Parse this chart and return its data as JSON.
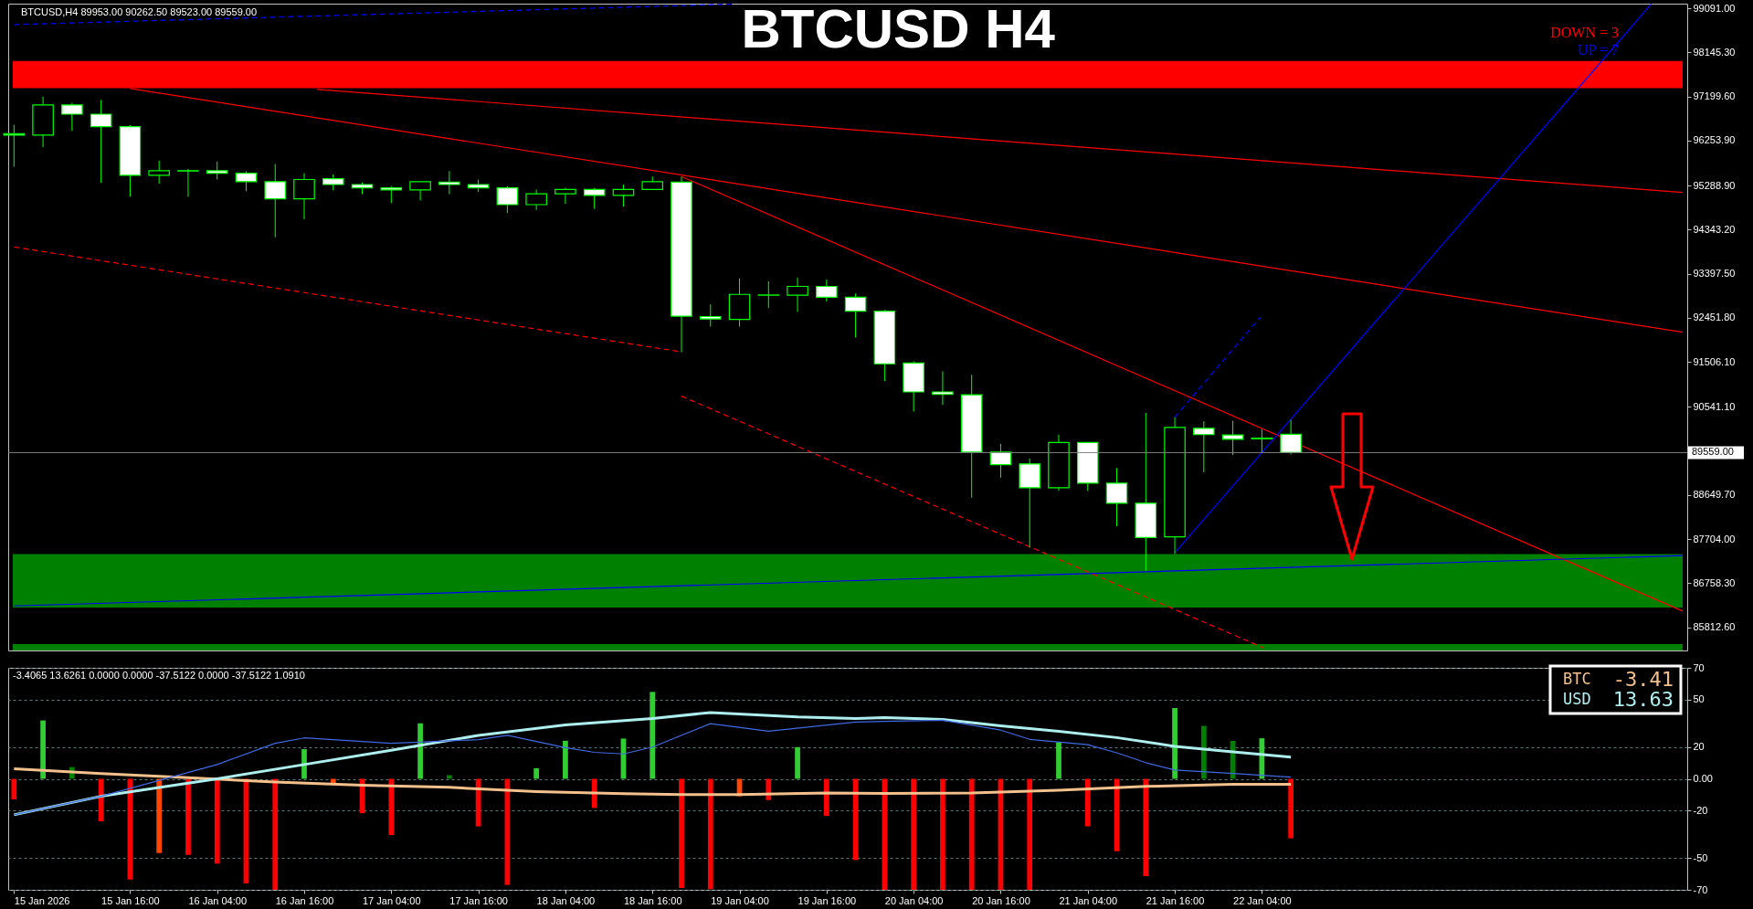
{
  "chart_data": [
    {
      "type": "candlestick",
      "title": "BTCUSD H4",
      "annotations": [
        "BTCUSD,H4  89953.00 90262.50 89523.00 89559.00",
        "DOWN = 3",
        "UP = 7"
      ],
      "x": [
        "2026-01-15T00:00",
        "2026-01-15T04:00",
        "2026-01-15T08:00",
        "2026-01-15T12:00",
        "2026-01-15T16:00",
        "2026-01-15T20:00",
        "2026-01-16T00:00",
        "2026-01-16T04:00",
        "2026-01-16T08:00",
        "2026-01-16T12:00",
        "2026-01-16T16:00",
        "2026-01-16T20:00",
        "2026-01-17T00:00",
        "2026-01-17T04:00",
        "2026-01-17T08:00",
        "2026-01-17T12:00",
        "2026-01-17T16:00",
        "2026-01-17T20:00",
        "2026-01-18T00:00",
        "2026-01-18T04:00",
        "2026-01-18T08:00",
        "2026-01-18T12:00",
        "2026-01-18T16:00",
        "2026-01-18T20:00",
        "2026-01-19T00:00",
        "2026-01-19T04:00",
        "2026-01-19T08:00",
        "2026-01-19T12:00",
        "2026-01-19T16:00",
        "2026-01-19T20:00",
        "2026-01-20T00:00",
        "2026-01-20T04:00",
        "2026-01-20T08:00",
        "2026-01-20T12:00",
        "2026-01-20T16:00",
        "2026-01-20T20:00",
        "2026-01-21T00:00",
        "2026-01-21T04:00",
        "2026-01-21T08:00",
        "2026-01-21T12:00",
        "2026-01-21T16:00",
        "2026-01-21T20:00",
        "2026-01-22T00:00",
        "2026-01-22T04:00",
        "2026-01-22T08:00"
      ],
      "ohlc": [
        [
          96400,
          96590,
          95690,
          96370
        ],
        [
          96369,
          97195,
          96109,
          97016
        ],
        [
          97016,
          97060,
          96459,
          96818
        ],
        [
          96818,
          97123,
          95345,
          96549
        ],
        [
          96549,
          96585,
          95049,
          95507
        ],
        [
          95507,
          95821,
          95327,
          95606
        ],
        [
          95606,
          95642,
          95049,
          95600
        ],
        [
          95606,
          95803,
          95417,
          95552
        ],
        [
          95552,
          95597,
          95166,
          95372
        ],
        [
          95372,
          95749,
          94178,
          95004
        ],
        [
          95004,
          95552,
          94564,
          95417
        ],
        [
          95435,
          95525,
          95184,
          95309
        ],
        [
          95309,
          95354,
          95103,
          95237
        ],
        [
          95237,
          95273,
          94914,
          95193
        ],
        [
          95193,
          95372,
          94968,
          95372
        ],
        [
          95363,
          95597,
          95103,
          95309
        ],
        [
          95309,
          95417,
          95148,
          95237
        ],
        [
          95237,
          95273,
          94699,
          94878
        ],
        [
          94878,
          95202,
          94762,
          95112
        ],
        [
          95112,
          95237,
          94896,
          95202
        ],
        [
          95202,
          95237,
          94789,
          95076
        ],
        [
          95076,
          95309,
          94834,
          95202
        ],
        [
          95202,
          95480,
          95202,
          95372
        ],
        [
          95360,
          95477,
          91714,
          92486
        ],
        [
          92477,
          92738,
          92262,
          92424
        ],
        [
          92415,
          93295,
          92262,
          92953
        ],
        [
          92935,
          93232,
          92666,
          92940
        ],
        [
          92935,
          93313,
          92576,
          93124
        ],
        [
          93124,
          93268,
          92800,
          92890
        ],
        [
          92890,
          92971,
          92028,
          92594
        ],
        [
          92594,
          92621,
          91095,
          91463
        ],
        [
          91481,
          91517,
          90439,
          90861
        ],
        [
          90861,
          91301,
          90583,
          90807
        ],
        [
          90798,
          91229,
          88591,
          89568
        ],
        [
          89568,
          89748,
          89020,
          89299
        ],
        [
          89317,
          89433,
          87520,
          88805
        ],
        [
          88805,
          89945,
          88742,
          89775
        ],
        [
          89775,
          89775,
          88742,
          88903
        ],
        [
          88903,
          89227,
          87979,
          88472
        ],
        [
          88472,
          90412,
          87027,
          87736
        ],
        [
          87754,
          90313,
          87386,
          90098
        ],
        [
          90080,
          90232,
          89137,
          89945
        ],
        [
          89936,
          90241,
          89505,
          89846
        ],
        [
          89870,
          90062,
          89568,
          89855
        ],
        [
          89953,
          90262.5,
          89523,
          89559
        ]
      ],
      "xlim": [
        "2026-01-14T23:50",
        "2026-01-24T14:00"
      ],
      "ylim": [
        85315,
        99189
      ],
      "yticks": [
        {
          "value": 85812.6,
          "label": "85812.60"
        },
        {
          "value": 86758.3,
          "label": "86758.30"
        },
        {
          "value": 87704,
          "label": "87704.00"
        },
        {
          "value": 88649.7,
          "label": "88649.70"
        },
        {
          "value": 90541.1,
          "label": "90541.10"
        },
        {
          "value": 91506.1,
          "label": "91506.10"
        },
        {
          "value": 92451.8,
          "label": "92451.80"
        },
        {
          "value": 93397.5,
          "label": "93397.50"
        },
        {
          "value": 94343.2,
          "label": "94343.20"
        },
        {
          "value": 95288.9,
          "label": "95288.90"
        },
        {
          "value": 96253.9,
          "label": "96253.90"
        },
        {
          "value": 97199.6,
          "label": "97199.60"
        },
        {
          "value": 98145.3,
          "label": "98145.30"
        },
        {
          "value": 99091,
          "label": "99091.00"
        }
      ],
      "tick_labels": "y",
      "bands": [
        {
          "axis": "y",
          "from": 97375,
          "to": 97958,
          "color": "#ff0000"
        },
        {
          "axis": "y",
          "from": 86234,
          "to": 87380,
          "color": "#008000"
        },
        {
          "axis": "y",
          "from": 85315,
          "to": 85450,
          "color": "#008000"
        }
      ],
      "ref_lines": [
        {
          "axis": "y",
          "value": 89559,
          "label": "89559.00",
          "color": "#808080"
        }
      ],
      "series": [
        {
          "type": "line",
          "x": [
            "2026-01-15T16:00",
            "2026-01-24T14:00"
          ],
          "values": [
            97370,
            92140
          ],
          "color": "#ff0000"
        },
        {
          "type": "line",
          "x": [
            "2026-01-16T17:45",
            "2026-01-24T14:00"
          ],
          "values": [
            97350,
            95140
          ],
          "color": "#ff0000"
        },
        {
          "type": "line",
          "x": [
            "2026-01-18T20:00",
            "2026-01-24T14:00"
          ],
          "values": [
            95480,
            86160
          ],
          "color": "#ff0000"
        },
        {
          "type": "line",
          "x": [
            "2026-01-15T00:00",
            "2026-01-18T20:00"
          ],
          "values": [
            93970,
            91720
          ],
          "color": "#ff0000",
          "line_style": "dashed"
        },
        {
          "type": "line",
          "x": [
            "2026-01-18T20:00",
            "2026-01-22T04:15"
          ],
          "values": [
            90770,
            85370
          ],
          "color": "#ff0000",
          "line_style": "dashed"
        },
        {
          "type": "line",
          "x": [
            "2026-01-21T16:00",
            "2026-01-24T09:40"
          ],
          "values": [
            87410,
            99180
          ],
          "color": "#0000ff"
        },
        {
          "type": "line",
          "x": [
            "2026-01-21T16:00",
            "2026-01-22T03:50"
          ],
          "values": [
            90320,
            92470
          ],
          "color": "#0000ff",
          "line_style": "dashed"
        },
        {
          "type": "line",
          "x": [
            "2026-01-15T00:00",
            "2026-01-24T14:00"
          ],
          "values": [
            86270,
            87350
          ],
          "color": "#0000ff"
        },
        {
          "type": "line",
          "x": [
            "2026-01-15T00:00",
            "2026-01-19T03:25"
          ],
          "values": [
            98740,
            99180
          ],
          "color": "#0000ff",
          "line_style": "dashed"
        }
      ]
    },
    {
      "type": "bar",
      "annotations": [
        "-3.4065 13.6261 0.0000 0.0000 -37.5122 0.0000 -37.5122 1.0910",
        "-3.41",
        "13.63"
      ],
      "x": [
        "2026-01-15T00:00",
        "2026-01-15T04:00",
        "2026-01-15T08:00",
        "2026-01-15T12:00",
        "2026-01-15T16:00",
        "2026-01-15T20:00",
        "2026-01-16T00:00",
        "2026-01-16T04:00",
        "2026-01-16T08:00",
        "2026-01-16T12:00",
        "2026-01-16T16:00",
        "2026-01-16T20:00",
        "2026-01-17T00:00",
        "2026-01-17T04:00",
        "2026-01-17T08:00",
        "2026-01-17T12:00",
        "2026-01-17T16:00",
        "2026-01-17T20:00",
        "2026-01-18T00:00",
        "2026-01-18T04:00",
        "2026-01-18T08:00",
        "2026-01-18T12:00",
        "2026-01-18T16:00",
        "2026-01-18T20:00",
        "2026-01-19T00:00",
        "2026-01-19T04:00",
        "2026-01-19T08:00",
        "2026-01-19T12:00",
        "2026-01-19T16:00",
        "2026-01-19T20:00",
        "2026-01-20T00:00",
        "2026-01-20T04:00",
        "2026-01-20T08:00",
        "2026-01-20T12:00",
        "2026-01-20T16:00",
        "2026-01-20T20:00",
        "2026-01-21T00:00",
        "2026-01-21T04:00",
        "2026-01-21T08:00",
        "2026-01-21T12:00",
        "2026-01-21T16:00",
        "2026-01-21T20:00",
        "2026-01-22T00:00",
        "2026-01-22T04:00",
        "2026-01-22T08:00"
      ],
      "xlim": [
        "2026-01-14T23:50",
        "2026-01-24T14:00"
      ],
      "xticks": [
        {
          "value": "2026-01-15T00:00",
          "label": "15 Jan 2026"
        },
        {
          "value": "2026-01-15T16:00",
          "label": "15 Jan 16:00"
        },
        {
          "value": "2026-01-16T04:00",
          "label": "16 Jan 04:00"
        },
        {
          "value": "2026-01-16T16:00",
          "label": "16 Jan 16:00"
        },
        {
          "value": "2026-01-17T04:00",
          "label": "17 Jan 04:00"
        },
        {
          "value": "2026-01-17T16:00",
          "label": "17 Jan 16:00"
        },
        {
          "value": "2026-01-18T04:00",
          "label": "18 Jan 04:00"
        },
        {
          "value": "2026-01-18T16:00",
          "label": "18 Jan 16:00"
        },
        {
          "value": "2026-01-19T04:00",
          "label": "19 Jan 04:00"
        },
        {
          "value": "2026-01-19T16:00",
          "label": "19 Jan 16:00"
        },
        {
          "value": "2026-01-20T04:00",
          "label": "20 Jan 04:00"
        },
        {
          "value": "2026-01-20T16:00",
          "label": "20 Jan 16:00"
        },
        {
          "value": "2026-01-21T04:00",
          "label": "21 Jan 04:00"
        },
        {
          "value": "2026-01-21T16:00",
          "label": "21 Jan 16:00"
        },
        {
          "value": "2026-01-22T04:00",
          "label": "22 Jan 04:00"
        }
      ],
      "ylim": [
        -70,
        70
      ],
      "yticks": [
        70,
        50,
        20,
        {
          "value": 0,
          "label": "0.00"
        },
        -20,
        -50,
        -70
      ],
      "grid": "y",
      "legend": "top right",
      "series": [
        {
          "type": "bar",
          "values": [
            -13,
            36.8,
            7.4,
            -26.8,
            -63.5,
            -46.8,
            -48,
            -53.5,
            -66,
            -70,
            18.7,
            -2.7,
            -21.7,
            -35.5,
            35,
            2.3,
            -30,
            -66.9,
            6.7,
            24,
            -18.4,
            25.4,
            54.8,
            -68.9,
            -69.6,
            -11,
            -13.4,
            20,
            -23.4,
            -51.2,
            -70,
            -70,
            -70,
            -70,
            -70,
            -70,
            23.2,
            -30,
            -45.7,
            -61.4,
            44.7,
            33.4,
            23.9,
            25.6,
            -37.5
          ],
          "colors": [
            "#ff0000",
            "#32cd32",
            "#008000",
            "#ff0000",
            "#ff0000",
            "#ff4500",
            "#ff0000",
            "#ff0000",
            "#ff0000",
            "#ff0000",
            "#32cd32",
            "#ff4500",
            "#ff0000",
            "#ff0000",
            "#32cd32",
            "#008000",
            "#ff0000",
            "#ff0000",
            "#32cd32",
            "#32cd32",
            "#ff0000",
            "#32cd32",
            "#32cd32",
            "#ff0000",
            "#ff0000",
            "#ff4500",
            "#ff0000",
            "#32cd32",
            "#ff0000",
            "#ff0000",
            "#ff0000",
            "#ff0000",
            "#ff0000",
            "#ff0000",
            "#ff0000",
            "#ff0000",
            "#32cd32",
            "#ff0000",
            "#ff0000",
            "#ff0000",
            "#32cd32",
            "#008000",
            "#008000",
            "#32cd32",
            "#ff0000"
          ]
        },
        {
          "type": "line",
          "name": "BTC",
          "color": "#f4c08c",
          "x": [
            "2026-01-15T00:00",
            "2026-01-15T12:00",
            "2026-01-16T00:00",
            "2026-01-16T12:00",
            "2026-01-17T00:00",
            "2026-01-17T12:00",
            "2026-01-18T00:00",
            "2026-01-18T12:00",
            "2026-01-18T20:00",
            "2026-01-19T04:00",
            "2026-01-19T16:00",
            "2026-01-20T00:00",
            "2026-01-20T12:00",
            "2026-01-21T00:00",
            "2026-01-21T12:00",
            "2026-01-22T00:00",
            "2026-01-22T08:00"
          ],
          "values": [
            6.4,
            3.3,
            0.7,
            -2,
            -4,
            -5.4,
            -8,
            -9.4,
            -10,
            -10,
            -9,
            -9.2,
            -8.9,
            -7.2,
            -4.8,
            -3.4,
            -3.41
          ]
        },
        {
          "type": "line",
          "name": "USD",
          "color": "#afeeee",
          "x": [
            "2026-01-15T00:00",
            "2026-01-15T12:00",
            "2026-01-16T04:00",
            "2026-01-16T16:00",
            "2026-01-17T04:00",
            "2026-01-17T16:00",
            "2026-01-18T04:00",
            "2026-01-18T16:00",
            "2026-01-19T00:00",
            "2026-01-19T12:00",
            "2026-01-19T20:00",
            "2026-01-20T00:00",
            "2026-01-20T08:00",
            "2026-01-20T16:00",
            "2026-01-21T00:00",
            "2026-01-21T08:00",
            "2026-01-21T16:00",
            "2026-01-22T00:00",
            "2026-01-22T08:00"
          ],
          "values": [
            -22.7,
            -11,
            0,
            9,
            18,
            27.4,
            34,
            38,
            41.8,
            39,
            38,
            38.6,
            37.5,
            33.4,
            30,
            26,
            20.5,
            17,
            13.63
          ]
        },
        {
          "type": "line",
          "color": "#4169e1",
          "x": [
            "2026-01-15T00:00",
            "2026-01-15T12:00",
            "2026-01-16T04:00",
            "2026-01-16T12:00",
            "2026-01-16T16:00",
            "2026-01-17T04:00",
            "2026-01-17T16:00",
            "2026-01-17T20:00",
            "2026-01-18T04:00",
            "2026-01-18T08:00",
            "2026-01-18T12:00",
            "2026-01-18T16:00",
            "2026-01-19T00:00",
            "2026-01-19T08:00",
            "2026-01-19T20:00",
            "2026-01-20T00:00",
            "2026-01-20T08:00",
            "2026-01-20T16:00",
            "2026-01-20T20:00",
            "2026-01-21T04:00",
            "2026-01-21T08:00",
            "2026-01-21T12:00",
            "2026-01-21T16:00",
            "2026-01-22T00:00",
            "2026-01-22T08:00"
          ],
          "values": [
            -22.7,
            -11,
            9,
            22.4,
            25.8,
            22.4,
            24.7,
            27.4,
            19.7,
            16.7,
            15.7,
            20,
            34.8,
            30,
            35.8,
            36.2,
            36.9,
            30.7,
            24.9,
            21.5,
            16.4,
            10.2,
            5.5,
            3.4,
            1.1
          ]
        }
      ]
    }
  ]
}
